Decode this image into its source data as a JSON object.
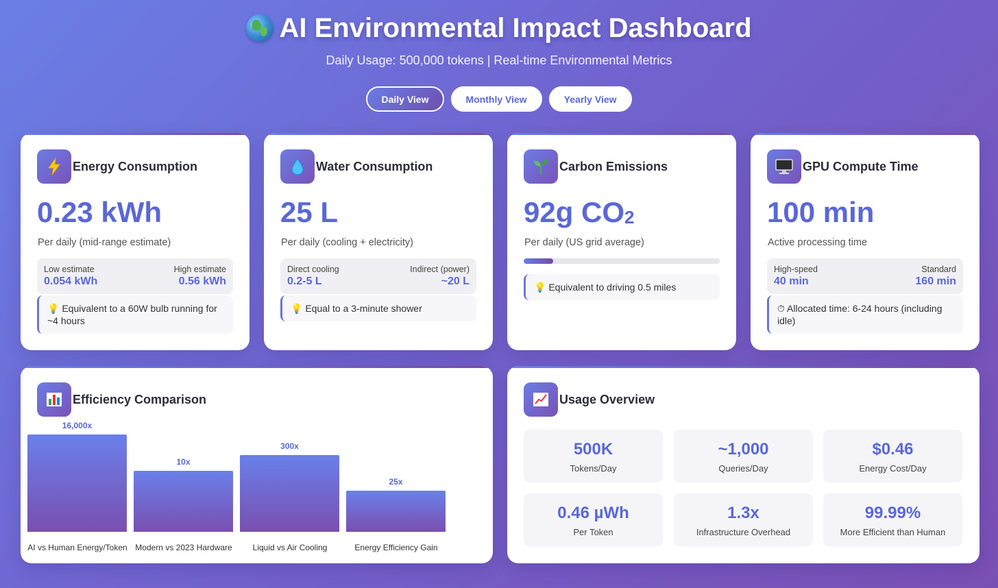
{
  "header": {
    "title": "AI Environmental Impact Dashboard",
    "subtitle": "Daily Usage: 500,000 tokens | Real-time Environmental Metrics"
  },
  "views": {
    "daily": "Daily View",
    "monthly": "Monthly View",
    "yearly": "Yearly View",
    "active": "daily"
  },
  "energy": {
    "icon": "lightning-icon",
    "title": "Energy Consumption",
    "value": "0.23 kWh",
    "desc": "Per daily (mid-range estimate)",
    "low_label": "Low estimate",
    "low_value": "0.054 kWh",
    "high_label": "High estimate",
    "high_value": "0.56 kWh",
    "note": "Equivalent to a 60W bulb running for ~4 hours"
  },
  "water": {
    "icon": "droplet-icon",
    "title": "Water Consumption",
    "value": "25 L",
    "desc": "Per daily (cooling + electricity)",
    "low_label": "Direct cooling",
    "low_value": "0.2-5 L",
    "high_label": "Indirect (power)",
    "high_value": "~20 L",
    "note": "Equal to a 3-minute shower"
  },
  "carbon": {
    "icon": "seedling-icon",
    "title": "Carbon Emissions",
    "value": "92g CO",
    "value_sub": "2",
    "desc": "Per daily (US grid average)",
    "progress": 0.15,
    "note": "Equivalent to driving 0.5 miles"
  },
  "gpu": {
    "icon": "computer-icon",
    "title": "GPU Compute Time",
    "value": "100 min",
    "desc": "Active processing time",
    "low_label": "High-speed",
    "low_value": "40 min",
    "high_label": "Standard",
    "high_value": "160 min",
    "note": "Allocated time: 6-24 hours (including idle)"
  },
  "efficiency": {
    "icon": "bar-chart-icon",
    "title": "Efficiency Comparison"
  },
  "chart_data": {
    "type": "bar",
    "categories": [
      "AI vs Human Energy/Token",
      "Modern vs 2023 Hardware",
      "Liquid vs Air Cooling",
      "Energy Efficiency Gain"
    ],
    "labels": [
      "16,000x",
      "10x",
      "300x",
      "25x"
    ],
    "relative_heights": [
      1.0,
      0.63,
      0.79,
      0.42
    ]
  },
  "usage": {
    "icon": "trending-chart-icon",
    "title": "Usage Overview",
    "stats": [
      {
        "value": "500K",
        "label": "Tokens/Day"
      },
      {
        "value": "~1,000",
        "label": "Queries/Day"
      },
      {
        "value": "$0.46",
        "label": "Energy Cost/Day"
      },
      {
        "value": "0.46 µWh",
        "label": "Per Token"
      },
      {
        "value": "1.3x",
        "label": "Infrastructure Overhead"
      },
      {
        "value": "99.99%",
        "label": "More Efficient than Human"
      }
    ]
  }
}
